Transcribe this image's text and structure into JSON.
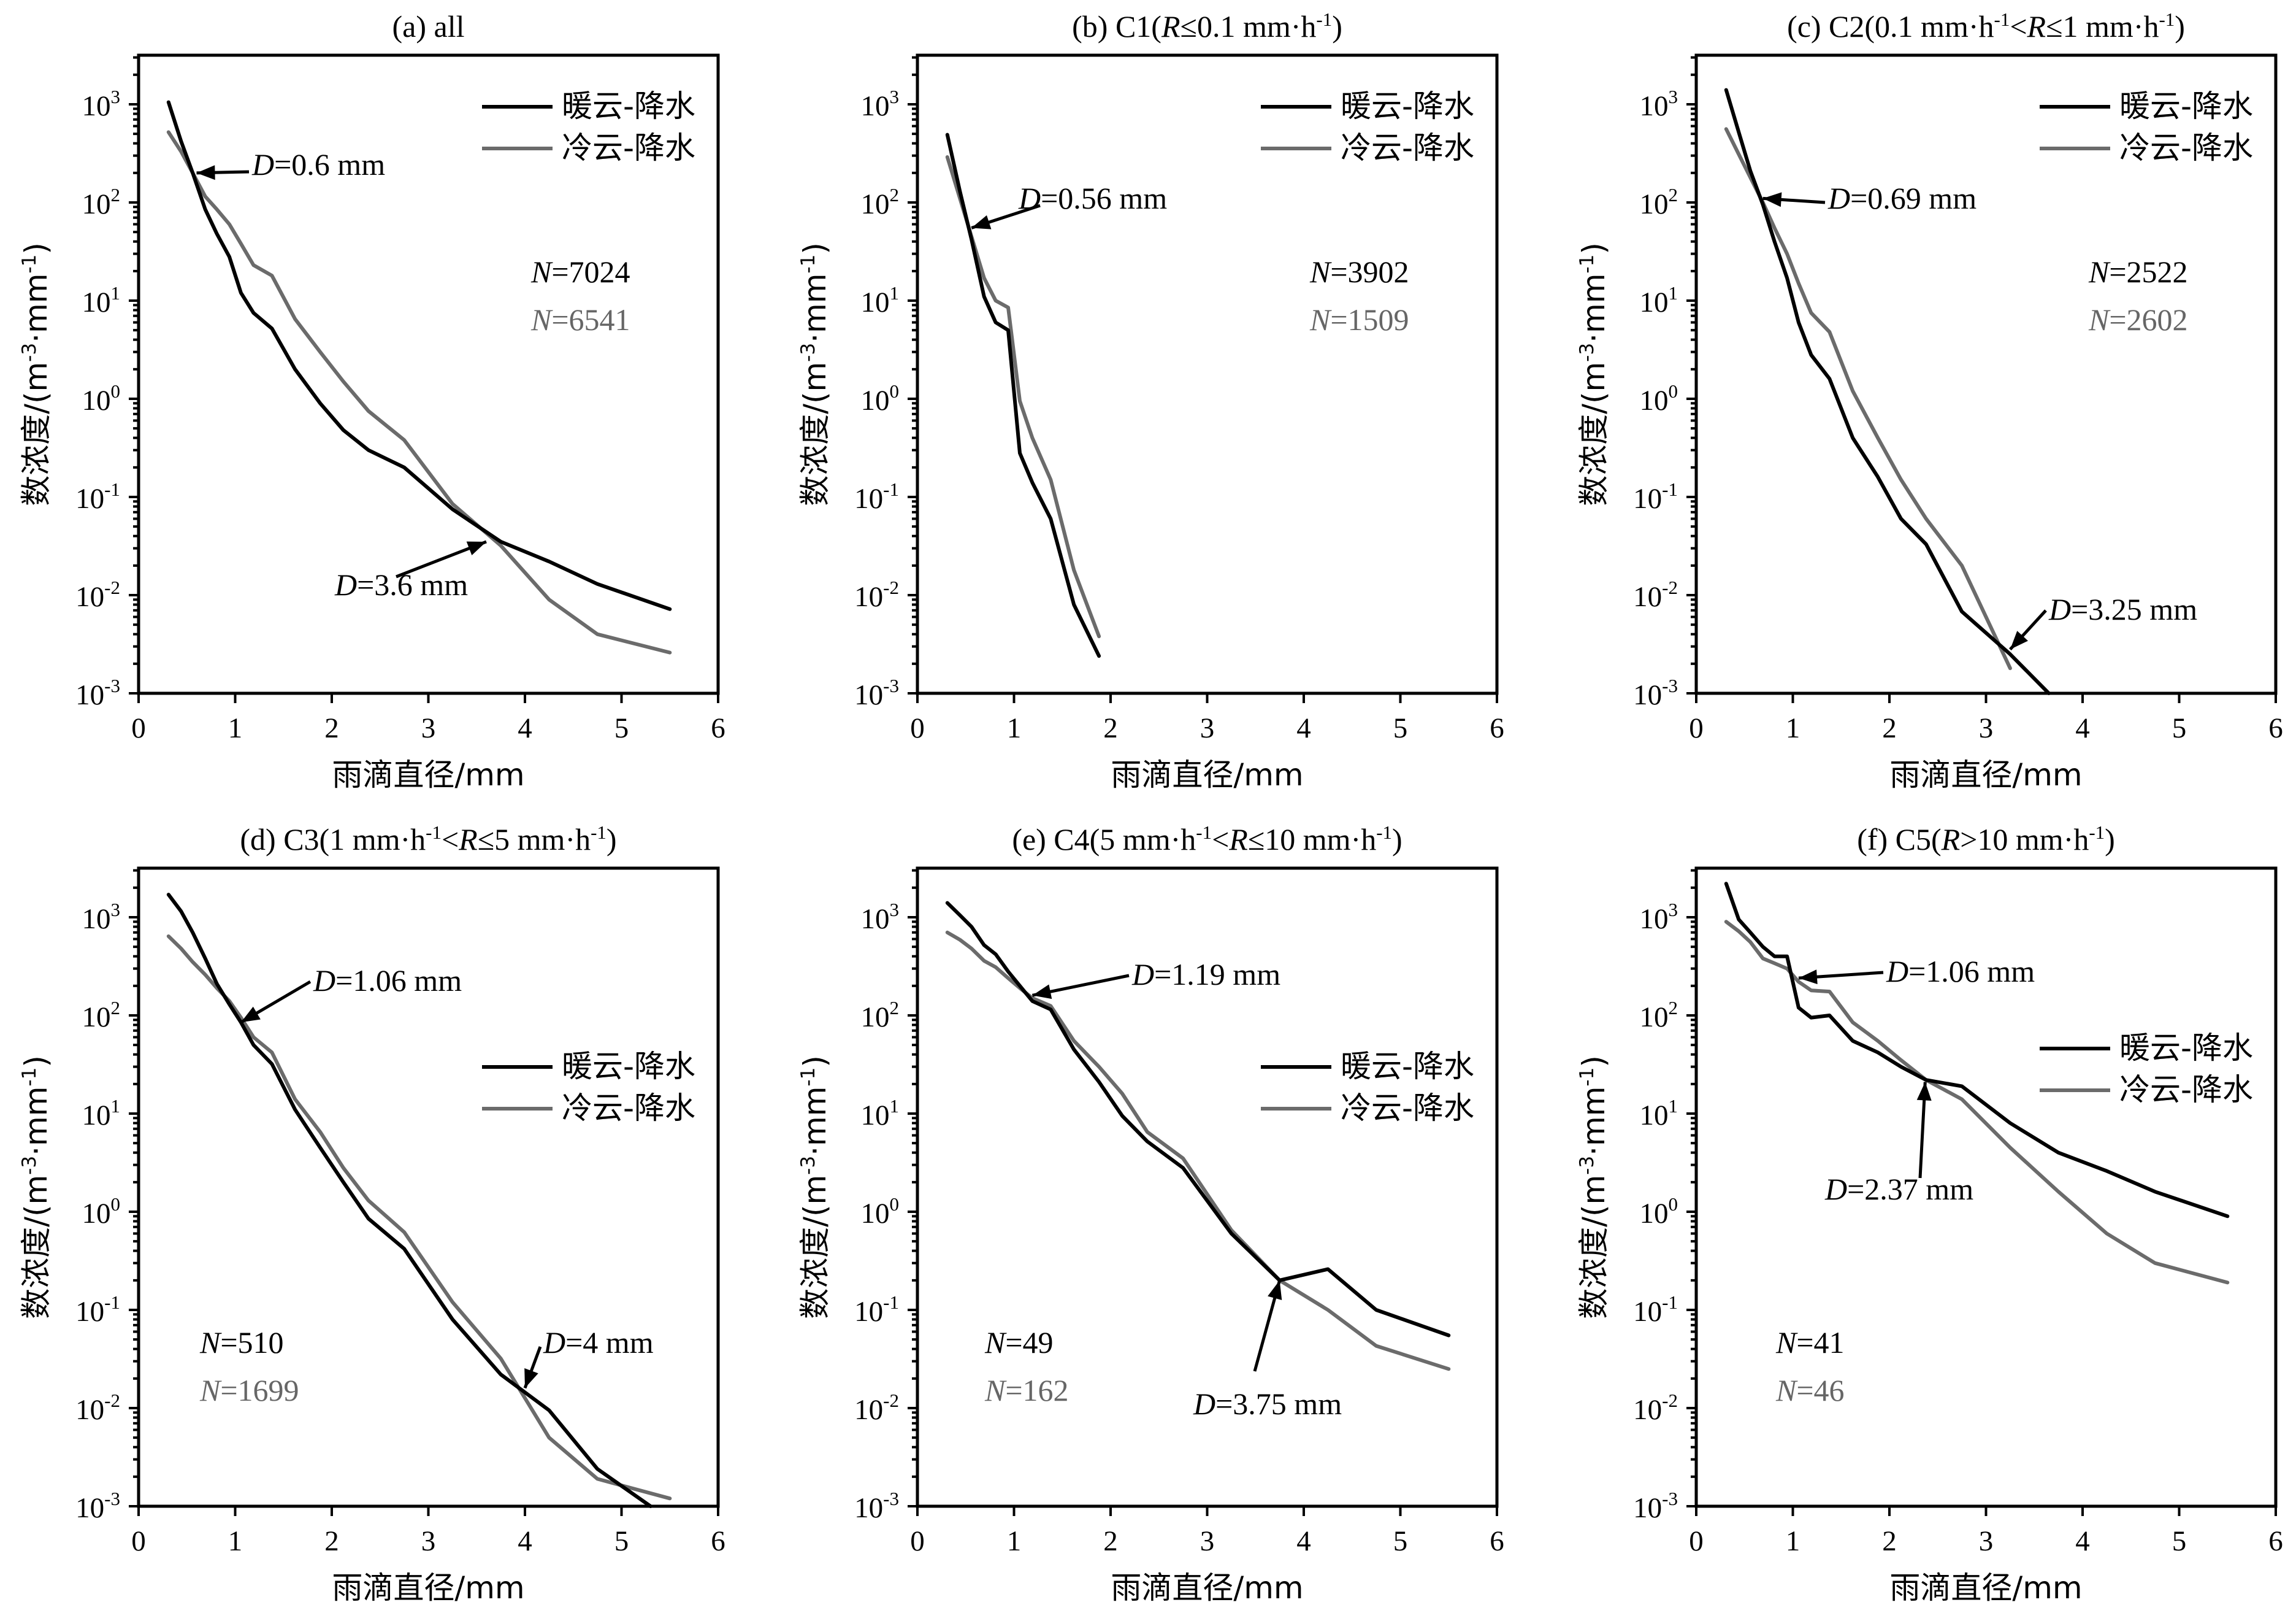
{
  "colors": {
    "warm": "#000000",
    "cold": "#6b6b6b",
    "cold_text": "#666666"
  },
  "chart_data": [
    {
      "id": "a",
      "type": "line",
      "title": "(a) all",
      "xlabel": "雨滴直径/mm",
      "ylabel": "数浓度/(m-3·mm-1)",
      "xlim": [
        0,
        6
      ],
      "ylim_log10": [
        -3,
        3.5
      ],
      "yscale": "log",
      "x_ticks": [
        "0",
        "1",
        "2",
        "3",
        "4",
        "5",
        "6"
      ],
      "legend_position": "top-right",
      "series": [
        {
          "name": "暖云-降水",
          "color": "#000000",
          "x": [
            0.31,
            0.44,
            0.56,
            0.69,
            0.81,
            0.94,
            1.06,
            1.19,
            1.38,
            1.62,
            1.88,
            2.12,
            2.38,
            2.75,
            3.25,
            3.75,
            4.25,
            4.75,
            5.5
          ],
          "y": [
            1050,
            420,
            200,
            85,
            48,
            28,
            12,
            7.5,
            5.2,
            2.0,
            0.9,
            0.48,
            0.3,
            0.2,
            0.075,
            0.035,
            0.022,
            0.013,
            0.0072
          ]
        },
        {
          "name": "冷云-降水",
          "color": "#6b6b6b",
          "x": [
            0.31,
            0.44,
            0.56,
            0.69,
            0.81,
            0.94,
            1.06,
            1.19,
            1.38,
            1.62,
            1.88,
            2.12,
            2.38,
            2.75,
            3.25,
            3.75,
            4.25,
            4.75,
            5.5
          ],
          "y": [
            520,
            330,
            200,
            115,
            85,
            60,
            38,
            23,
            18,
            6.5,
            3.0,
            1.5,
            0.75,
            0.38,
            0.085,
            0.032,
            0.009,
            0.004,
            0.0026
          ]
        }
      ],
      "counts": {
        "warm": "N=7024",
        "cold": "N=6541"
      },
      "annotations": [
        {
          "text": "D=0.6 mm",
          "point": [
            0.6,
            200
          ]
        },
        {
          "text": "D=3.6 mm",
          "point": [
            3.6,
            0.035
          ]
        }
      ]
    },
    {
      "id": "b",
      "type": "line",
      "title": "(b) C1(R≤0.1 mm·h-1)",
      "xlabel": "雨滴直径/mm",
      "ylabel": "数浓度/(m-3·mm-1)",
      "xlim": [
        0,
        6
      ],
      "ylim_log10": [
        -3,
        3.5
      ],
      "yscale": "log",
      "x_ticks": [
        "0",
        "1",
        "2",
        "3",
        "4",
        "5",
        "6"
      ],
      "legend_position": "top-right",
      "series": [
        {
          "name": "暖云-降水",
          "color": "#000000",
          "x": [
            0.31,
            0.44,
            0.56,
            0.69,
            0.81,
            0.94,
            1.06,
            1.19,
            1.38,
            1.62,
            1.88
          ],
          "y": [
            490,
            130,
            42,
            11,
            6,
            5,
            0.28,
            0.14,
            0.06,
            0.008,
            0.0024
          ]
        },
        {
          "name": "冷云-降水",
          "color": "#6b6b6b",
          "x": [
            0.31,
            0.44,
            0.56,
            0.69,
            0.81,
            0.94,
            1.06,
            1.19,
            1.38,
            1.62,
            1.88
          ],
          "y": [
            290,
            110,
            45,
            17,
            10,
            8.5,
            0.95,
            0.4,
            0.15,
            0.018,
            0.0038
          ]
        }
      ],
      "counts": {
        "warm": "N=3902",
        "cold": "N=1509"
      },
      "annotations": [
        {
          "text": "D=0.56 mm",
          "point": [
            0.56,
            55
          ]
        }
      ]
    },
    {
      "id": "c",
      "type": "line",
      "title": "(c) C2(0.1 mm·h-1<R≤1 mm·h-1)",
      "xlabel": "雨滴直径/mm",
      "ylabel": "数浓度/(m-3·mm-1)",
      "xlim": [
        0,
        6
      ],
      "ylim_log10": [
        -3,
        3.5
      ],
      "yscale": "log",
      "x_ticks": [
        "0",
        "1",
        "2",
        "3",
        "4",
        "5",
        "6"
      ],
      "legend_position": "top-right",
      "series": [
        {
          "name": "暖云-降水",
          "color": "#000000",
          "x": [
            0.31,
            0.44,
            0.56,
            0.69,
            0.81,
            0.94,
            1.06,
            1.19,
            1.38,
            1.62,
            1.88,
            2.12,
            2.38,
            2.75,
            3.25,
            3.65
          ],
          "y": [
            1400,
            520,
            210,
            95,
            40,
            17,
            6,
            2.8,
            1.6,
            0.4,
            0.16,
            0.06,
            0.033,
            0.0068,
            0.0025,
            0.001
          ]
        },
        {
          "name": "冷云-降水",
          "color": "#6b6b6b",
          "x": [
            0.31,
            0.44,
            0.56,
            0.69,
            0.81,
            0.94,
            1.06,
            1.19,
            1.38,
            1.62,
            1.88,
            2.12,
            2.38,
            2.75,
            3.25
          ],
          "y": [
            560,
            310,
            180,
            100,
            55,
            30,
            15,
            7.5,
            4.8,
            1.2,
            0.4,
            0.15,
            0.06,
            0.02,
            0.0018
          ]
        }
      ],
      "counts": {
        "warm": "N=2522",
        "cold": "N=2602"
      },
      "annotations": [
        {
          "text": "D=3.25 mm",
          "point": [
            3.25,
            0.0028
          ]
        },
        {
          "text": "D=0.69 mm",
          "point": [
            0.69,
            110
          ]
        }
      ]
    },
    {
      "id": "d",
      "type": "line",
      "title": "(d) C3(1 mm·h-1<R≤5 mm·h-1)",
      "xlabel": "雨滴直径/mm",
      "ylabel": "数浓度/(m-3·mm-1)",
      "xlim": [
        0,
        6
      ],
      "ylim_log10": [
        -3,
        3.5
      ],
      "yscale": "log",
      "x_ticks": [
        "0",
        "1",
        "2",
        "3",
        "4",
        "5",
        "6"
      ],
      "legend_position": "right",
      "series": [
        {
          "name": "暖云-降水",
          "color": "#000000",
          "x": [
            0.31,
            0.44,
            0.56,
            0.69,
            0.81,
            0.94,
            1.06,
            1.19,
            1.38,
            1.62,
            1.88,
            2.12,
            2.38,
            2.75,
            3.25,
            3.75,
            4.25,
            4.75,
            5.3
          ],
          "y": [
            1700,
            1150,
            700,
            380,
            210,
            130,
            85,
            50,
            32,
            11,
            4.5,
            2.0,
            0.85,
            0.42,
            0.08,
            0.022,
            0.0095,
            0.0024,
            0.001
          ]
        },
        {
          "name": "冷云-降水",
          "color": "#6b6b6b",
          "x": [
            0.31,
            0.44,
            0.56,
            0.69,
            0.81,
            0.94,
            1.06,
            1.19,
            1.38,
            1.62,
            1.88,
            2.12,
            2.38,
            2.75,
            3.25,
            3.75,
            4.25,
            4.75,
            5.5
          ],
          "y": [
            640,
            480,
            350,
            260,
            190,
            140,
            95,
            60,
            42,
            14,
            6.5,
            2.8,
            1.3,
            0.62,
            0.12,
            0.032,
            0.005,
            0.0019,
            0.0012
          ]
        }
      ],
      "counts": {
        "warm": "N=510",
        "cold": "N=1699"
      },
      "annotations": [
        {
          "text": "D=1.06 mm",
          "point": [
            1.06,
            85
          ]
        },
        {
          "text": "D=4 mm",
          "point": [
            4.0,
            0.016
          ]
        }
      ]
    },
    {
      "id": "e",
      "type": "line",
      "title": "(e) C4(5 mm·h-1<R≤10 mm·h-1)",
      "xlabel": "雨滴直径/mm",
      "ylabel": "数浓度/(m-3·mm-1)",
      "xlim": [
        0,
        6
      ],
      "ylim_log10": [
        -3,
        3.5
      ],
      "yscale": "log",
      "x_ticks": [
        "0",
        "1",
        "2",
        "3",
        "4",
        "5",
        "6"
      ],
      "legend_position": "right",
      "series": [
        {
          "name": "暖云-降水",
          "color": "#000000",
          "x": [
            0.31,
            0.44,
            0.56,
            0.69,
            0.81,
            0.94,
            1.06,
            1.19,
            1.38,
            1.62,
            1.88,
            2.12,
            2.38,
            2.75,
            3.25,
            3.75,
            4.25,
            4.75,
            5.5
          ],
          "y": [
            1400,
            1050,
            800,
            520,
            420,
            280,
            200,
            140,
            115,
            45,
            21,
            9.5,
            5.2,
            2.8,
            0.6,
            0.2,
            0.26,
            0.1,
            0.055
          ]
        },
        {
          "name": "冷云-降水",
          "color": "#6b6b6b",
          "x": [
            0.31,
            0.44,
            0.56,
            0.69,
            0.81,
            0.94,
            1.06,
            1.19,
            1.38,
            1.62,
            1.88,
            2.12,
            2.38,
            2.75,
            3.25,
            3.75,
            4.25,
            4.75,
            5.5
          ],
          "y": [
            700,
            590,
            480,
            360,
            310,
            240,
            190,
            150,
            125,
            55,
            30,
            16,
            6.5,
            3.5,
            0.65,
            0.2,
            0.1,
            0.043,
            0.025
          ]
        }
      ],
      "counts": {
        "warm": "N=49",
        "cold": "N=162"
      },
      "annotations": [
        {
          "text": "D=1.19 mm",
          "point": [
            1.19,
            160
          ]
        },
        {
          "text": "D=3.75 mm",
          "point": [
            3.75,
            0.2
          ]
        }
      ]
    },
    {
      "id": "f",
      "type": "line",
      "title": "(f) C5(R>10 mm·h-1)",
      "xlabel": "雨滴直径/mm",
      "ylabel": "数浓度/(m-3·mm-1)",
      "xlim": [
        0,
        6
      ],
      "ylim_log10": [
        -3,
        3.5
      ],
      "yscale": "log",
      "x_ticks": [
        "0",
        "1",
        "2",
        "3",
        "4",
        "5",
        "6"
      ],
      "legend_position": "right",
      "series": [
        {
          "name": "暖云-降水",
          "color": "#000000",
          "x": [
            0.31,
            0.44,
            0.56,
            0.69,
            0.81,
            0.94,
            1.06,
            1.19,
            1.38,
            1.62,
            1.88,
            2.12,
            2.38,
            2.75,
            3.25,
            3.75,
            4.25,
            4.75,
            5.5
          ],
          "y": [
            2200,
            950,
            700,
            500,
            400,
            400,
            120,
            95,
            100,
            55,
            42,
            30,
            22,
            19,
            8,
            4,
            2.6,
            1.6,
            0.9
          ]
        },
        {
          "name": "冷云-降水",
          "color": "#6b6b6b",
          "x": [
            0.31,
            0.44,
            0.56,
            0.69,
            0.81,
            0.94,
            1.06,
            1.19,
            1.38,
            1.62,
            1.88,
            2.12,
            2.38,
            2.75,
            3.25,
            3.75,
            4.25,
            4.75,
            5.5
          ],
          "y": [
            900,
            720,
            560,
            380,
            340,
            300,
            220,
            180,
            175,
            85,
            55,
            35,
            22,
            14,
            4.5,
            1.6,
            0.6,
            0.3,
            0.19
          ]
        }
      ],
      "counts": {
        "warm": "N=41",
        "cold": "N=46"
      },
      "annotations": [
        {
          "text": "D=1.06 mm",
          "point": [
            1.06,
            240
          ]
        },
        {
          "text": "D=2.37 mm",
          "point": [
            2.37,
            21
          ]
        }
      ]
    }
  ]
}
